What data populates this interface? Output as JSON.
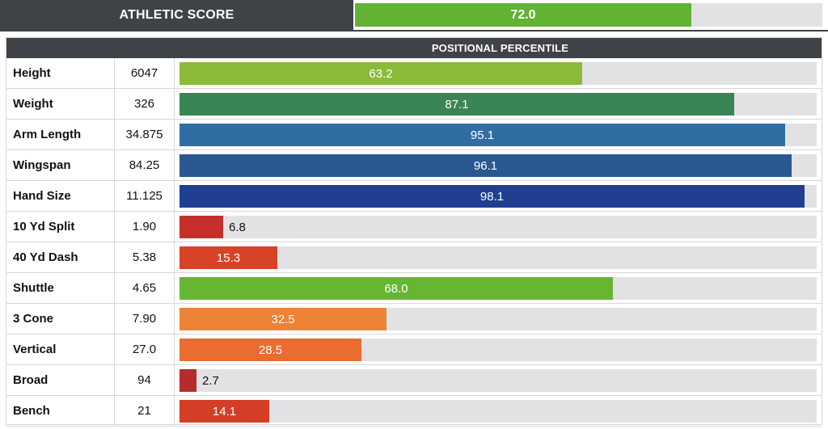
{
  "athletic_score": {
    "label": "ATHLETIC SCORE",
    "value": 72.0,
    "display": "72.0",
    "color": "#62b234"
  },
  "header": {
    "title": "POSITIONAL PERCENTILE"
  },
  "chart_data": {
    "type": "bar",
    "orientation": "horizontal",
    "title": "POSITIONAL PERCENTILE",
    "xlim": [
      0,
      100
    ],
    "categories": [
      "Height",
      "Weight",
      "Arm Length",
      "Wingspan",
      "Hand Size",
      "10 Yd Split",
      "40 Yd Dash",
      "Shuttle",
      "3 Cone",
      "Vertical",
      "Broad",
      "Bench"
    ],
    "measurements": [
      "6047",
      "326",
      "34.875",
      "84.25",
      "11.125",
      "1.90",
      "5.38",
      "4.65",
      "7.90",
      "27.0",
      "94",
      "21"
    ],
    "values": [
      63.2,
      87.1,
      95.1,
      96.1,
      98.1,
      6.8,
      15.3,
      68.0,
      32.5,
      28.5,
      2.7,
      14.1
    ],
    "labels": [
      "63.2",
      "87.1",
      "95.1",
      "96.1",
      "98.1",
      "6.8",
      "15.3",
      "68.0",
      "32.5",
      "28.5",
      "2.7",
      "14.1"
    ],
    "colors": [
      "#8bbb39",
      "#3a8556",
      "#2e6ea2",
      "#2a5890",
      "#203f91",
      "#c62f2b",
      "#d64327",
      "#66b533",
      "#ee8236",
      "#ea6c30",
      "#b52c2c",
      "#d43e27"
    ]
  }
}
